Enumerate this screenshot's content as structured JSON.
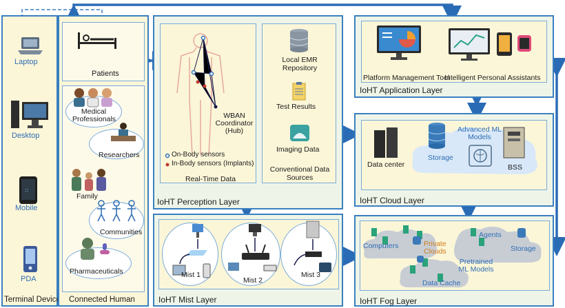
{
  "terminal": {
    "title": "Terminal Devices",
    "devices": [
      "Laptop",
      "Desktop",
      "Mobile",
      "PDA"
    ]
  },
  "connected": {
    "title": "Connected Human",
    "patients": "Patients",
    "groups": [
      "Medical Professionals",
      "Researchers",
      "Family",
      "Communities",
      "Pharmaceuticals"
    ]
  },
  "perception": {
    "title": "IoHT Perception Layer",
    "coordinator": "WBAN Coordinator (Hub)",
    "legend_on": "On-Body sensors",
    "legend_in": "In-Body sensors (Implants)",
    "realtime": "Real-Time Data",
    "emr": "Local EMR Repository",
    "tests": "Test Results",
    "imaging": "Imaging Data",
    "conventional": "Conventional Data Sources"
  },
  "mist": {
    "title": "IoHT Mist Layer",
    "nodes": [
      "Mist 1",
      "Mist 2",
      "Mist 3"
    ]
  },
  "application": {
    "title": "IoHT Application Layer",
    "tool": "Platform Management Tool",
    "assistants": "Intelligent Personal Assistants"
  },
  "cloud": {
    "title": "IoHT Cloud Layer",
    "datacenter": "Data center",
    "storage": "Storage",
    "ml": "Advanced ML Models",
    "bss": "BSS"
  },
  "fog": {
    "title": "IoHT Fog Layer",
    "computers": "Computers",
    "private": "Private Clouds",
    "agents": "Agents",
    "storage": "Storage",
    "pretrained": "Pretrained ML Models",
    "cache": "Data Cache"
  },
  "colors": {
    "border": "#3a7fc0",
    "arrow": "#2a6bb5",
    "panel": "#fbf6d8",
    "layer": "#eef5e8",
    "accent_orange": "#d07a1a"
  }
}
